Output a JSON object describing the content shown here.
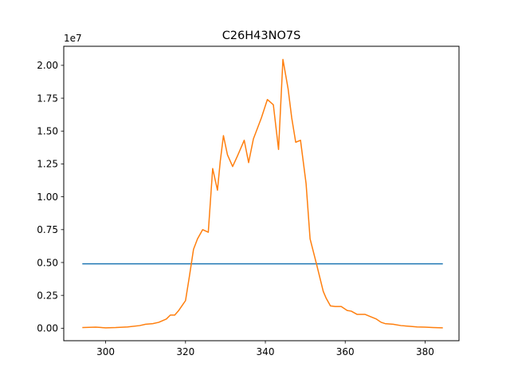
{
  "chart_data": {
    "type": "line",
    "title": "C26H43NO7S",
    "xlabel": "",
    "ylabel": "",
    "y_offset_label": "1e7",
    "xlim": [
      289.5,
      388.5
    ],
    "ylim": [
      -950000,
      21450000
    ],
    "x_ticks": [
      300,
      320,
      340,
      360,
      380
    ],
    "x_tick_labels": [
      "300",
      "320",
      "340",
      "360",
      "380"
    ],
    "y_ticks": [
      0,
      2500000,
      5000000,
      7500000,
      10000000,
      12500000,
      15000000,
      17500000,
      20000000
    ],
    "y_tick_labels": [
      "0.00",
      "0.25",
      "0.50",
      "0.75",
      "1.00",
      "1.25",
      "1.50",
      "1.75",
      "2.00"
    ],
    "grid": false,
    "series": [
      {
        "color": "#1f77b4",
        "x": [
          294.3,
          384.3
        ],
        "y": [
          4900000,
          4900000
        ]
      },
      {
        "color": "#ff7f0e",
        "x": [
          294.3,
          297.5,
          300.0,
          302.5,
          305.5,
          308.5,
          310.0,
          311.8,
          313.3,
          315.2,
          316.2,
          317.3,
          318.3,
          320.0,
          321.0,
          322.0,
          323.0,
          324.3,
          325.7,
          326.8,
          328.0,
          328.7,
          329.5,
          330.5,
          331.8,
          333.0,
          334.7,
          335.8,
          337.0,
          339.0,
          340.5,
          342.0,
          343.3,
          344.4,
          345.7,
          346.6,
          347.6,
          348.8,
          350.2,
          351.2,
          352.8,
          354.5,
          355.2,
          356.3,
          357.5,
          359.0,
          360.5,
          361.5,
          363.0,
          365.0,
          366.2,
          367.8,
          369.0,
          370.0,
          372.0,
          374.0,
          376.0,
          378.0,
          380.0,
          382.0,
          384.3
        ],
        "y": [
          50000,
          80000,
          30000,
          50000,
          100000,
          200000,
          300000,
          350000,
          450000,
          700000,
          1000000,
          1000000,
          1350000,
          2100000,
          4000000,
          6000000,
          6800000,
          7500000,
          7300000,
          12150000,
          10500000,
          12700000,
          14650000,
          13200000,
          12300000,
          13100000,
          14300000,
          12600000,
          14400000,
          16000000,
          17400000,
          17000000,
          13600000,
          20450000,
          18200000,
          16000000,
          14150000,
          14300000,
          11000000,
          6800000,
          4900000,
          2800000,
          2300000,
          1700000,
          1650000,
          1650000,
          1350000,
          1300000,
          1050000,
          1050000,
          900000,
          700000,
          450000,
          350000,
          300000,
          200000,
          150000,
          100000,
          80000,
          50000,
          30000
        ]
      }
    ]
  }
}
